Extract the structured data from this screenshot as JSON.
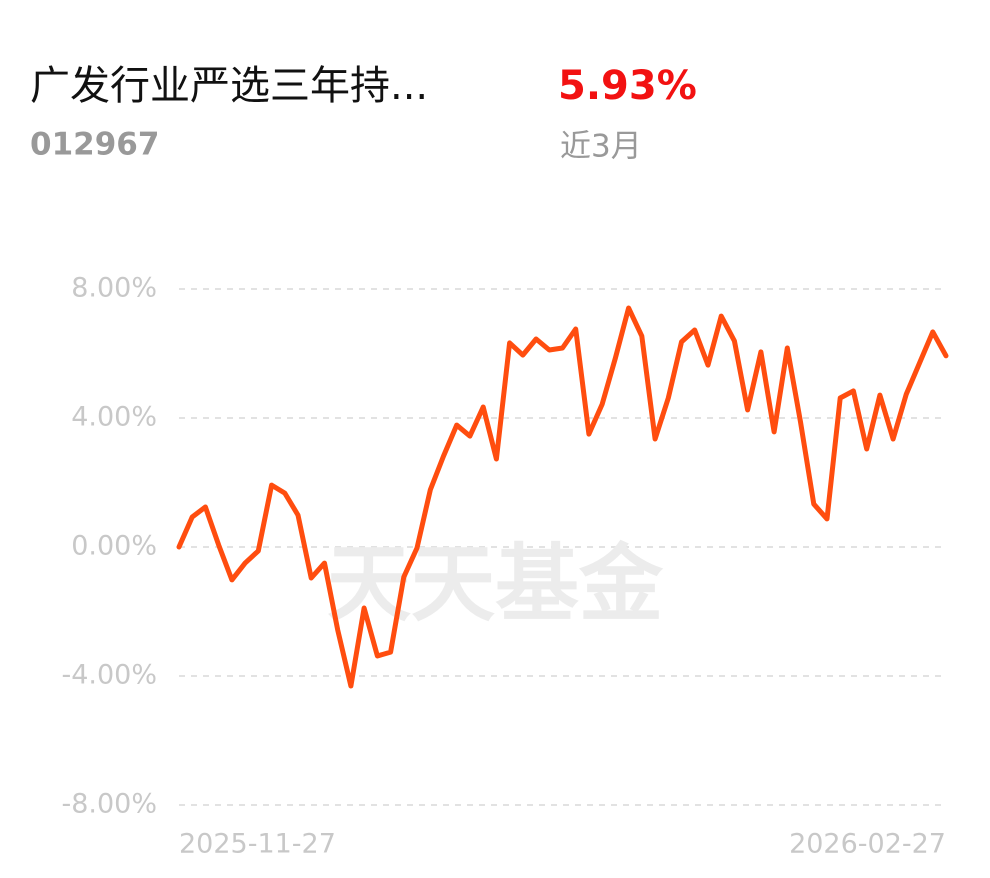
{
  "header": {
    "title": "广发行业严选三年持...",
    "code": "012967",
    "return": "5.93%",
    "period": "近3月"
  },
  "chart_data": {
    "type": "line",
    "watermark": "天天基金",
    "color": "#ff4d0f",
    "categories": [
      "2025-11-27",
      null,
      null,
      null,
      null,
      null,
      null,
      null,
      null,
      null,
      null,
      null,
      null,
      null,
      null,
      null,
      null,
      null,
      null,
      null,
      null,
      null,
      null,
      null,
      null,
      null,
      null,
      null,
      null,
      null,
      null,
      null,
      null,
      null,
      null,
      null,
      null,
      null,
      null,
      null,
      null,
      null,
      null,
      null,
      null,
      null,
      null,
      null,
      null,
      null,
      null,
      null,
      null,
      null,
      null,
      null,
      null,
      null,
      "2026-02-27"
    ],
    "values": [
      0,
      0.93,
      1.24,
      0.06,
      -1.02,
      -0.5,
      -0.12,
      1.92,
      1.67,
      0.99,
      -0.96,
      -0.5,
      -2.57,
      -4.31,
      -1.89,
      -3.38,
      -3.26,
      -0.93,
      -0.03,
      1.77,
      2.82,
      3.78,
      3.44,
      4.34,
      2.73,
      6.33,
      5.95,
      6.45,
      6.11,
      6.17,
      6.76,
      3.5,
      4.43,
      5.86,
      7.41,
      6.54,
      3.35,
      4.62,
      6.36,
      6.73,
      5.64,
      7.16,
      6.39,
      4.25,
      6.05,
      3.57,
      6.17,
      3.88,
      1.33,
      0.87,
      4.62,
      4.84,
      3.04,
      4.71,
      3.35,
      4.74,
      5.71,
      6.67,
      5.93
    ],
    "ylim": [
      -8,
      8
    ],
    "yticks": [
      {
        "value": 8,
        "label": "8.00%"
      },
      {
        "value": 4,
        "label": "4.00%"
      },
      {
        "value": 0,
        "label": "0.00%"
      },
      {
        "value": -4,
        "label": "-4.00%"
      },
      {
        "value": -8,
        "label": "-8.00%"
      }
    ],
    "grid": true
  }
}
